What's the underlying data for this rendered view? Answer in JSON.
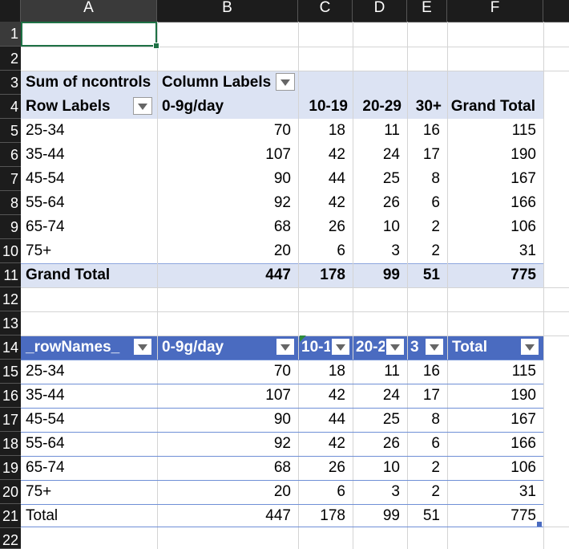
{
  "columns": [
    "A",
    "B",
    "C",
    "D",
    "E",
    "F"
  ],
  "rows": [
    "1",
    "2",
    "3",
    "4",
    "5",
    "6",
    "7",
    "8",
    "9",
    "10",
    "11",
    "12",
    "13",
    "14",
    "15",
    "16",
    "17",
    "18",
    "19",
    "20",
    "21",
    "22"
  ],
  "pivot": {
    "r3_a": "Sum of ncontrols",
    "r3_b": "Column Labels",
    "r4_a": "Row Labels",
    "r4_b": "0-9g/day",
    "r4_c": "10-19",
    "r4_d": "20-29",
    "r4_e": "30+",
    "r4_f": "Grand Total",
    "rows": [
      {
        "label": "25-34",
        "c1": "70",
        "c2": "18",
        "c3": "11",
        "c4": "16",
        "tot": "115"
      },
      {
        "label": "35-44",
        "c1": "107",
        "c2": "42",
        "c3": "24",
        "c4": "17",
        "tot": "190"
      },
      {
        "label": "45-54",
        "c1": "90",
        "c2": "44",
        "c3": "25",
        "c4": "8",
        "tot": "167"
      },
      {
        "label": "55-64",
        "c1": "92",
        "c2": "42",
        "c3": "26",
        "c4": "6",
        "tot": "166"
      },
      {
        "label": "65-74",
        "c1": "68",
        "c2": "26",
        "c3": "10",
        "c4": "2",
        "tot": "106"
      },
      {
        "label": "75+",
        "c1": "20",
        "c2": "6",
        "c3": "3",
        "c4": "2",
        "tot": "31"
      }
    ],
    "grand": {
      "label": "Grand Total",
      "c1": "447",
      "c2": "178",
      "c3": "99",
      "c4": "51",
      "tot": "775"
    }
  },
  "table": {
    "h_a": "_rowNames_",
    "h_b": "0-9g/day",
    "h_c": "10-1",
    "h_d": "20-2",
    "h_e": "3",
    "h_f": "Total",
    "rows": [
      {
        "label": "25-34",
        "c1": "70",
        "c2": "18",
        "c3": "11",
        "c4": "16",
        "tot": "115"
      },
      {
        "label": "35-44",
        "c1": "107",
        "c2": "42",
        "c3": "24",
        "c4": "17",
        "tot": "190"
      },
      {
        "label": "45-54",
        "c1": "90",
        "c2": "44",
        "c3": "25",
        "c4": "8",
        "tot": "167"
      },
      {
        "label": "55-64",
        "c1": "92",
        "c2": "42",
        "c3": "26",
        "c4": "6",
        "tot": "166"
      },
      {
        "label": "65-74",
        "c1": "68",
        "c2": "26",
        "c3": "10",
        "c4": "2",
        "tot": "106"
      },
      {
        "label": "75+",
        "c1": "20",
        "c2": "6",
        "c3": "3",
        "c4": "2",
        "tot": "31"
      }
    ],
    "total": {
      "label": "Total",
      "c1": "447",
      "c2": "178",
      "c3": "99",
      "c4": "51",
      "tot": "775"
    }
  },
  "colors": {
    "pivot_band": "#dce3f3",
    "table_header": "#4a6bc0",
    "table_border": "#6f8fd6",
    "selection": "#1e7145",
    "header_bg": "#1c1c1c"
  }
}
